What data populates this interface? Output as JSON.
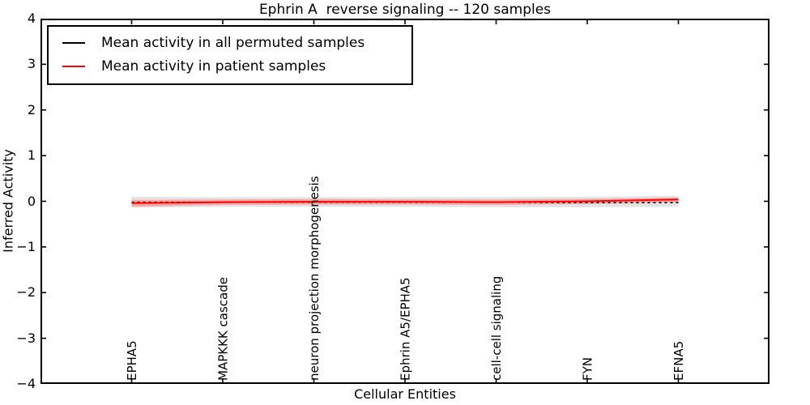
{
  "title": "Ephrin A  reverse signaling -- 120 samples",
  "xlabel": "Cellular Entities",
  "ylabel": "Inferred Activity",
  "legend": {
    "items": [
      {
        "label": "Mean activity in all permuted samples",
        "color": "#000000"
      },
      {
        "label": "Mean activity in patient samples",
        "color": "#ff0000"
      }
    ]
  },
  "chart_data": {
    "type": "line",
    "title": "Ephrin A  reverse signaling -- 120 samples",
    "xlabel": "Cellular Entities",
    "ylabel": "Inferred Activity",
    "xlim": [
      -1,
      7
    ],
    "ylim": [
      -4,
      4
    ],
    "grid": false,
    "legend_position": "upper left",
    "frame_color": "#000000",
    "ytick_labels": [
      "4",
      "3",
      "2",
      "1",
      "0",
      "−1",
      "−2",
      "−3",
      "−4"
    ],
    "ytick_values": [
      4,
      3,
      2,
      1,
      0,
      -1,
      -2,
      -3,
      -4
    ],
    "categories": [
      "EPHA5",
      "MAPKKK cascade",
      "neuron projection morphogenesis",
      "Ephrin A5/EPHA5",
      "cell-cell signaling",
      "FYN",
      "EFNA5"
    ],
    "series": [
      {
        "name": "Mean activity in all permuted samples",
        "color": "#000000",
        "line_style": "dotted",
        "values": [
          -0.02,
          -0.02,
          -0.02,
          -0.02,
          -0.02,
          -0.03,
          -0.03
        ]
      },
      {
        "name": "Mean activity in patient samples",
        "color": "#ff0000",
        "line_style": "solid",
        "values": [
          -0.04,
          -0.02,
          -0.01,
          -0.01,
          -0.02,
          0.0,
          0.04
        ]
      }
    ],
    "bands": [
      {
        "name": "permuted-samples-spread",
        "color": "#e3e3e3",
        "upper": [
          0.1,
          0.09,
          0.09,
          0.09,
          0.09,
          0.1,
          0.12
        ],
        "lower": [
          -0.14,
          -0.12,
          -0.12,
          -0.12,
          -0.13,
          -0.13,
          -0.12
        ]
      },
      {
        "name": "patient-samples-spread",
        "color": "#f5aaaa",
        "upper": [
          0.03,
          0.04,
          0.05,
          0.04,
          0.04,
          0.05,
          0.08
        ],
        "lower": [
          -0.12,
          -0.08,
          -0.07,
          -0.07,
          -0.08,
          -0.06,
          -0.02
        ]
      }
    ]
  }
}
